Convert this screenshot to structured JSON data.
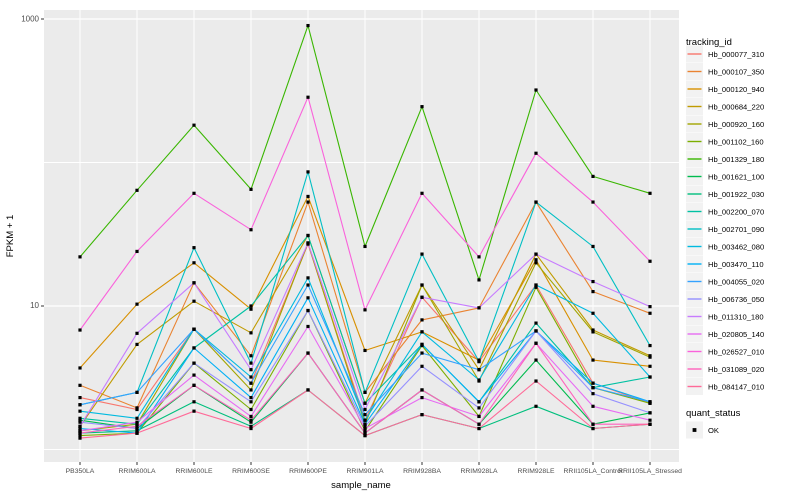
{
  "y_axis": {
    "title": "FPKM + 1",
    "ticks": [
      {
        "label": "1000",
        "value": 1000
      },
      {
        "label": "10",
        "value": 10
      }
    ]
  },
  "x_axis": {
    "title": "sample_name"
  },
  "legend": {
    "tracking_title": "tracking_id",
    "quant_title": "quant_status",
    "quant_items": [
      {
        "label": "OK"
      }
    ]
  },
  "colors": {
    "panel_bg": "#EBEBEB",
    "grid": "#FFFFFF",
    "point": "#000000",
    "tick_text": "#4D4D4D",
    "axis_title_text": "#000000",
    "legend_key_bg": "#F2F2F2"
  },
  "chart_data": {
    "type": "line",
    "title": "",
    "xlabel": "sample_name",
    "ylabel": "FPKM + 1",
    "yscale": "log10",
    "ylim": [
      0.82,
      1160
    ],
    "grid_values": [
      1,
      10,
      100,
      1000
    ],
    "major_tick_values": [
      10,
      1000
    ],
    "legend_position": "right",
    "x_categories": [
      "PB350LA",
      "RRIM600LA",
      "RRIM600LE",
      "RRIM600SE",
      "RRIM600PE",
      "RRIM901LA",
      "RRIM928BA",
      "RRIM928LA",
      "RRIM928LE",
      "RRII105LA_Control",
      "RRII105LA_Stressed"
    ],
    "series": [
      {
        "name": "Hb_000077_310",
        "color": "#F8766D",
        "values": [
          2.3,
          1.9,
          6.9,
          2.9,
          27,
          1.6,
          11.5,
          4.1,
          14,
          2.9,
          2.1
        ]
      },
      {
        "name": "Hb_000107_350",
        "color": "#EA8331",
        "values": [
          2.8,
          1.95,
          14.5,
          4.5,
          53,
          2.5,
          8.0,
          9.7,
          53,
          12.6,
          8.9
        ]
      },
      {
        "name": "Hb_000120_940",
        "color": "#D89000",
        "values": [
          3.7,
          10.3,
          20,
          9.5,
          58,
          4.9,
          6.6,
          4.2,
          21,
          4.2,
          3.8
        ]
      },
      {
        "name": "Hb_000684_220",
        "color": "#C09B00",
        "values": [
          1.45,
          5.4,
          10.8,
          6.5,
          31,
          2.1,
          14,
          3.6,
          23,
          6.8,
          4.5
        ]
      },
      {
        "name": "Hb_000920_160",
        "color": "#A3A500",
        "values": [
          1.35,
          1.5,
          6.9,
          2.6,
          27.5,
          1.5,
          14,
          3.0,
          20,
          6.6,
          4.4
        ]
      },
      {
        "name": "Hb_001102_160",
        "color": "#7CAE00",
        "values": [
          1.25,
          1.3,
          4.0,
          1.9,
          9.3,
          1.35,
          5.3,
          1.7,
          13.5,
          2.7,
          2.1
        ]
      },
      {
        "name": "Hb_001329_180",
        "color": "#39B600",
        "values": [
          22,
          64,
          182,
          65,
          900,
          26,
          245,
          15.2,
          320,
          80,
          61
        ]
      },
      {
        "name": "Hb_001621_100",
        "color": "#00BB4E",
        "values": [
          1.6,
          1.4,
          2.8,
          1.55,
          4.7,
          1.3,
          2.6,
          1.5,
          4.2,
          1.5,
          1.8
        ]
      },
      {
        "name": "Hb_001922_030",
        "color": "#00BF7D",
        "values": [
          1.3,
          1.35,
          2.15,
          1.45,
          2.6,
          1.25,
          1.75,
          1.4,
          2.0,
          1.4,
          1.5
        ]
      },
      {
        "name": "Hb_002200_070",
        "color": "#00C1A3",
        "values": [
          1.65,
          1.5,
          5.1,
          10,
          31,
          2.1,
          5.4,
          2.15,
          7.6,
          2.7,
          3.2
        ]
      },
      {
        "name": "Hb_002701_090",
        "color": "#00BFC4",
        "values": [
          2.05,
          2.5,
          25.5,
          4.0,
          86,
          2.5,
          23,
          4.1,
          53,
          26,
          5.3
        ]
      },
      {
        "name": "Hb_003462_080",
        "color": "#00BAE0",
        "values": [
          1.85,
          1.65,
          6.9,
          3.2,
          15.7,
          1.6,
          6.6,
          3.05,
          14,
          8.9,
          3.2
        ]
      },
      {
        "name": "Hb_003470_110",
        "color": "#00B0F6",
        "values": [
          1.4,
          1.3,
          5.1,
          2.3,
          11.4,
          1.5,
          5.4,
          2.15,
          6.7,
          2.9,
          2.15
        ]
      },
      {
        "name": "Hb_004055_020",
        "color": "#35A2FF",
        "values": [
          2.05,
          2.5,
          6.9,
          2.9,
          14,
          1.75,
          4.7,
          3.6,
          6.7,
          2.7,
          2.15
        ]
      },
      {
        "name": "Hb_006736_050",
        "color": "#9590FF",
        "values": [
          1.55,
          1.4,
          4.0,
          2.15,
          9.3,
          1.45,
          3.8,
          1.95,
          6.7,
          2.45,
          1.8
        ]
      },
      {
        "name": "Hb_011310_180",
        "color": "#C77CFF",
        "values": [
          1.45,
          6.45,
          14.5,
          3.6,
          27.5,
          1.9,
          11.5,
          9.7,
          23,
          14.8,
          9.9
        ]
      },
      {
        "name": "Hb_020805_140",
        "color": "#E76BF3",
        "values": [
          1.35,
          1.55,
          3.3,
          1.7,
          7.2,
          1.4,
          2.3,
          1.7,
          5.5,
          2.0,
          1.6
        ]
      },
      {
        "name": "Hb_026527_010",
        "color": "#FA62DB",
        "values": [
          6.8,
          24,
          61,
          34,
          285,
          9.4,
          61,
          22,
          116,
          53,
          20.5
        ]
      },
      {
        "name": "Hb_031089_020",
        "color": "#FF62BC",
        "values": [
          1.3,
          1.45,
          2.8,
          1.6,
          4.7,
          1.3,
          2.6,
          1.5,
          5.5,
          1.5,
          1.5
        ]
      },
      {
        "name": "Hb_084147_010",
        "color": "#FF6A98",
        "values": [
          1.2,
          1.3,
          1.85,
          1.4,
          2.6,
          1.25,
          1.75,
          1.4,
          3.0,
          1.4,
          1.5
        ]
      }
    ]
  }
}
